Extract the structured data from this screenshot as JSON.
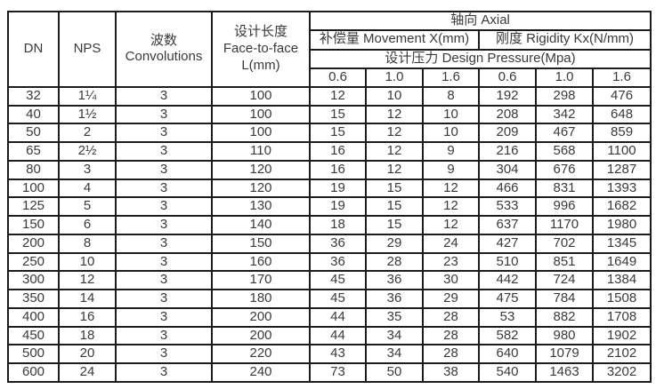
{
  "table": {
    "headers": {
      "dn": "DN",
      "nps": "NPS",
      "convolutions_cn": "波数",
      "convolutions_en": "Convolutions",
      "length_cn": "设计长度",
      "length_en": "Face-to-face",
      "length_unit": "L(mm)",
      "axial": "轴向 Axial",
      "movement": "补偿量 Movement X(mm)",
      "rigidity": "刚度 Rigidity Kx(N/mm)",
      "pressure": "设计压力 Design Pressure(Mpa)",
      "pressure_values": [
        "0.6",
        "1.0",
        "1.6",
        "0.6",
        "1.0",
        "1.6"
      ]
    },
    "rows": [
      [
        "32",
        "1¼",
        "3",
        "100",
        "12",
        "10",
        "8",
        "192",
        "298",
        "476"
      ],
      [
        "40",
        "1½",
        "3",
        "100",
        "15",
        "12",
        "10",
        "208",
        "342",
        "648"
      ],
      [
        "50",
        "2",
        "3",
        "100",
        "15",
        "12",
        "10",
        "209",
        "467",
        "859"
      ],
      [
        "65",
        "2½",
        "3",
        "110",
        "16",
        "12",
        "9",
        "216",
        "568",
        "1100"
      ],
      [
        "80",
        "3",
        "3",
        "120",
        "16",
        "12",
        "9",
        "304",
        "676",
        "1287"
      ],
      [
        "100",
        "4",
        "3",
        "120",
        "19",
        "15",
        "12",
        "466",
        "831",
        "1393"
      ],
      [
        "125",
        "5",
        "3",
        "130",
        "19",
        "15",
        "12",
        "533",
        "996",
        "1682"
      ],
      [
        "150",
        "6",
        "3",
        "140",
        "18",
        "15",
        "12",
        "637",
        "1170",
        "1980"
      ],
      [
        "200",
        "8",
        "3",
        "150",
        "36",
        "29",
        "24",
        "427",
        "702",
        "1345"
      ],
      [
        "250",
        "10",
        "3",
        "160",
        "36",
        "28",
        "23",
        "510",
        "851",
        "1649"
      ],
      [
        "300",
        "12",
        "3",
        "170",
        "45",
        "36",
        "30",
        "442",
        "724",
        "1384"
      ],
      [
        "350",
        "14",
        "3",
        "180",
        "45",
        "36",
        "29",
        "475",
        "784",
        "1508"
      ],
      [
        "400",
        "16",
        "3",
        "200",
        "44",
        "35",
        "28",
        "53",
        "882",
        "1708"
      ],
      [
        "450",
        "18",
        "3",
        "200",
        "44",
        "34",
        "28",
        "582",
        "980",
        "1902"
      ],
      [
        "500",
        "20",
        "3",
        "220",
        "43",
        "34",
        "28",
        "640",
        "1079",
        "2102"
      ],
      [
        "600",
        "24",
        "3",
        "240",
        "73",
        "50",
        "38",
        "540",
        "1463",
        "3202"
      ]
    ],
    "colors": {
      "border": "#1c1c1c",
      "text": "#3a3a3a",
      "background": "#ffffff"
    }
  }
}
